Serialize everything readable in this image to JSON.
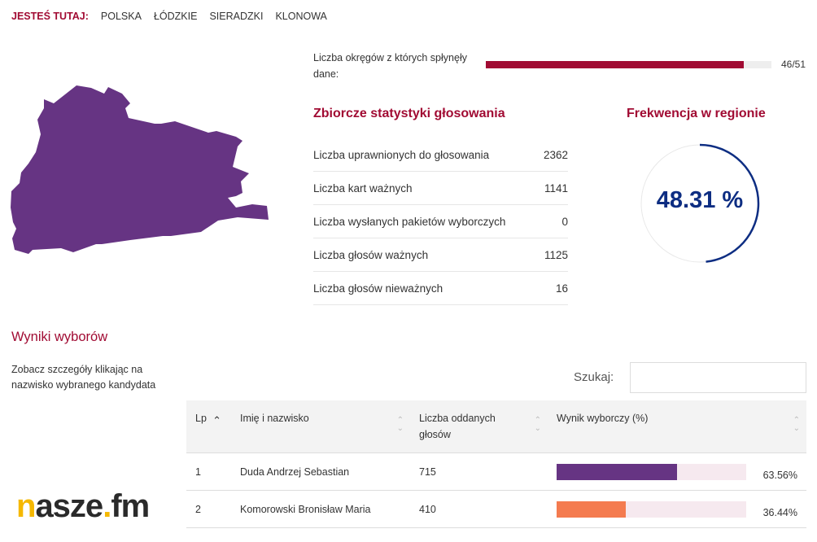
{
  "breadcrumb": {
    "lead": "JESTEŚ TUTAJ:",
    "items": [
      "POLSKA",
      "ŁÓDZKIE",
      "SIERADZKI",
      "KLONOWA"
    ]
  },
  "map": {
    "color": "#663483"
  },
  "progress": {
    "label": "Liczba okręgów z których spłynęły dane:",
    "value": "46/51",
    "fraction": 0.902,
    "color": "#a10b33"
  },
  "stats": {
    "title": "Zbiorcze statystyki głosowania",
    "rows": [
      {
        "label": "Liczba uprawnionych do głosowania",
        "value": "2362"
      },
      {
        "label": "Liczba kart ważnych",
        "value": "1141"
      },
      {
        "label": "Liczba wysłanych pakietów wyborczych",
        "value": "0"
      },
      {
        "label": "Liczba głosów ważnych",
        "value": "1125"
      },
      {
        "label": "Liczba głosów nieważnych",
        "value": "16"
      }
    ]
  },
  "turnout": {
    "title": "Frekwencja w regionie",
    "value": "48.31 %",
    "percent": 48.31,
    "color": "#0d2d82"
  },
  "results": {
    "title": "Wyniki wyborów",
    "hint": "Zobacz szczegóły klikając na nazwisko wybranego kandydata",
    "search_label": "Szukaj:",
    "search_value": "",
    "columns": [
      "Lp",
      "Imię i nazwisko",
      "Liczba oddanych głosów",
      "Wynik wyborczy (%)"
    ],
    "rows": [
      {
        "lp": "1",
        "name": "Duda Andrzej Sebastian",
        "votes": "715",
        "pct": "63.56%",
        "percent": 63.56,
        "color": "#663483"
      },
      {
        "lp": "2",
        "name": "Komorowski Bronisław Maria",
        "votes": "410",
        "pct": "36.44%",
        "percent": 36.44,
        "color": "#f47b4f"
      }
    ]
  },
  "watermark": {
    "text_n": "n",
    "text": "asze",
    "dot": ".",
    "text2": "fm"
  }
}
